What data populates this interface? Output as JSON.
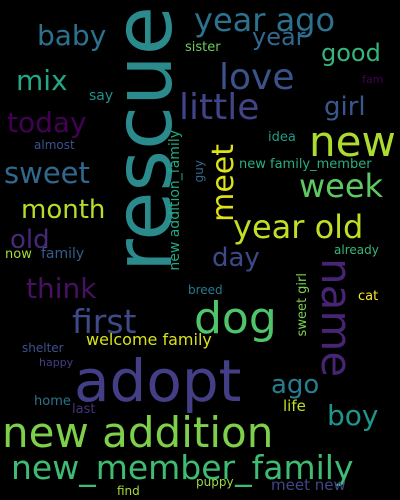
{
  "words": [
    {
      "text": "rescue",
      "color": "#2a8a8c"
    },
    {
      "text": "adopt",
      "color": "#433e86"
    },
    {
      "text": "new addition",
      "color": "#7ed04b"
    },
    {
      "text": "new_member_family",
      "color": "#3fbc73"
    },
    {
      "text": "dog",
      "color": "#50c46a"
    },
    {
      "text": "name",
      "color": "#482475"
    },
    {
      "text": "year ago",
      "color": "#2c728e"
    },
    {
      "text": "love",
      "color": "#3b528b"
    },
    {
      "text": "new",
      "color": "#addc30"
    },
    {
      "text": "week",
      "color": "#5ec962"
    },
    {
      "text": "little",
      "color": "#414487"
    },
    {
      "text": "baby",
      "color": "#2c728e"
    },
    {
      "text": "year",
      "color": "#31688e"
    },
    {
      "text": "good",
      "color": "#35b779"
    },
    {
      "text": "mix",
      "color": "#22a884"
    },
    {
      "text": "girl",
      "color": "#38598c"
    },
    {
      "text": "today",
      "color": "#440154"
    },
    {
      "text": "sweet",
      "color": "#31688e"
    },
    {
      "text": "meet",
      "color": "#dde318"
    },
    {
      "text": "year old",
      "color": "#c0df25"
    },
    {
      "text": "month",
      "color": "#b5de2b"
    },
    {
      "text": "old",
      "color": "#482878"
    },
    {
      "text": "day",
      "color": "#3e4989"
    },
    {
      "text": "think",
      "color": "#471063"
    },
    {
      "text": "first",
      "color": "#3e4a89"
    },
    {
      "text": "ago",
      "color": "#287d8e"
    },
    {
      "text": "boy",
      "color": "#1f958b"
    },
    {
      "text": "welcome family",
      "color": "#d8e219"
    },
    {
      "text": "new addition_family",
      "color": "#22a884"
    },
    {
      "text": "sister",
      "color": "#6ccd5a"
    },
    {
      "text": "say",
      "color": "#20928c"
    },
    {
      "text": "idea",
      "color": "#1f9e89"
    },
    {
      "text": "new family_member",
      "color": "#29af7f"
    },
    {
      "text": "guy",
      "color": "#31688e"
    },
    {
      "text": "almost",
      "color": "#3b528b"
    },
    {
      "text": "family",
      "color": "#365c8d"
    },
    {
      "text": "now",
      "color": "#a5db36"
    },
    {
      "text": "already",
      "color": "#35b779"
    },
    {
      "text": "fam",
      "color": "#440154"
    },
    {
      "text": "breed",
      "color": "#2a788e"
    },
    {
      "text": "cat",
      "color": "#fde725"
    },
    {
      "text": "sweet girl",
      "color": "#7ad151"
    },
    {
      "text": "shelter",
      "color": "#3b528b"
    },
    {
      "text": "happy",
      "color": "#433e86"
    },
    {
      "text": "home",
      "color": "#2c728e"
    },
    {
      "text": "last",
      "color": "#46327e"
    },
    {
      "text": "life",
      "color": "#c2df23"
    },
    {
      "text": "meet new",
      "color": "#404688"
    },
    {
      "text": "find",
      "color": "#a8db34"
    },
    {
      "text": "puppy",
      "color": "#9bd93c"
    }
  ]
}
